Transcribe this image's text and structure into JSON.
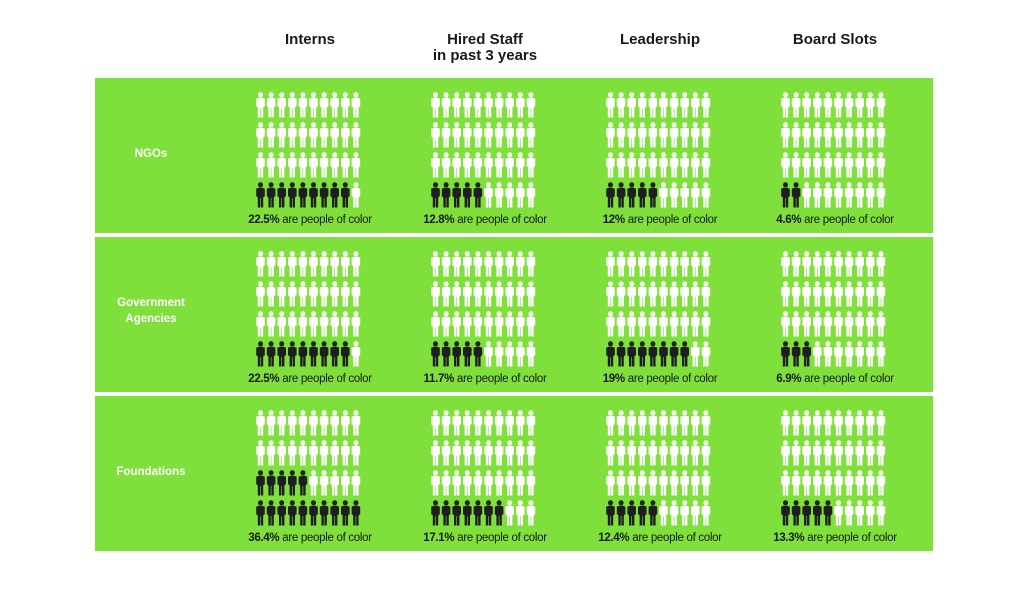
{
  "chart_data": {
    "type": "pictograph",
    "title": "",
    "unit": "% people of color",
    "caption_suffix": "are people of color",
    "columns": [
      "Interns",
      "Hired Staff\nin past 3 years",
      "Leadership",
      "Board Slots"
    ],
    "rows": [
      {
        "label": "NGOs",
        "values": [
          22.5,
          12.8,
          12,
          4.6
        ],
        "display": [
          "22.5%",
          "12.8%",
          "12%",
          "4.6%"
        ]
      },
      {
        "label": "Government\nAgencies",
        "values": [
          22.5,
          11.7,
          19,
          6.9
        ],
        "display": [
          "22.5%",
          "11.7%",
          "19%",
          "6.9%"
        ]
      },
      {
        "label": "Foundations",
        "values": [
          36.4,
          17.1,
          12.4,
          13.3
        ],
        "display": [
          "36.4%",
          "17.1%",
          "12.4%",
          "13.3%"
        ]
      }
    ],
    "figures_per_grid": 40,
    "colors": {
      "people_of_color": "#1e1e1e",
      "other": "#ffffff",
      "background": "#7fe03b"
    }
  }
}
